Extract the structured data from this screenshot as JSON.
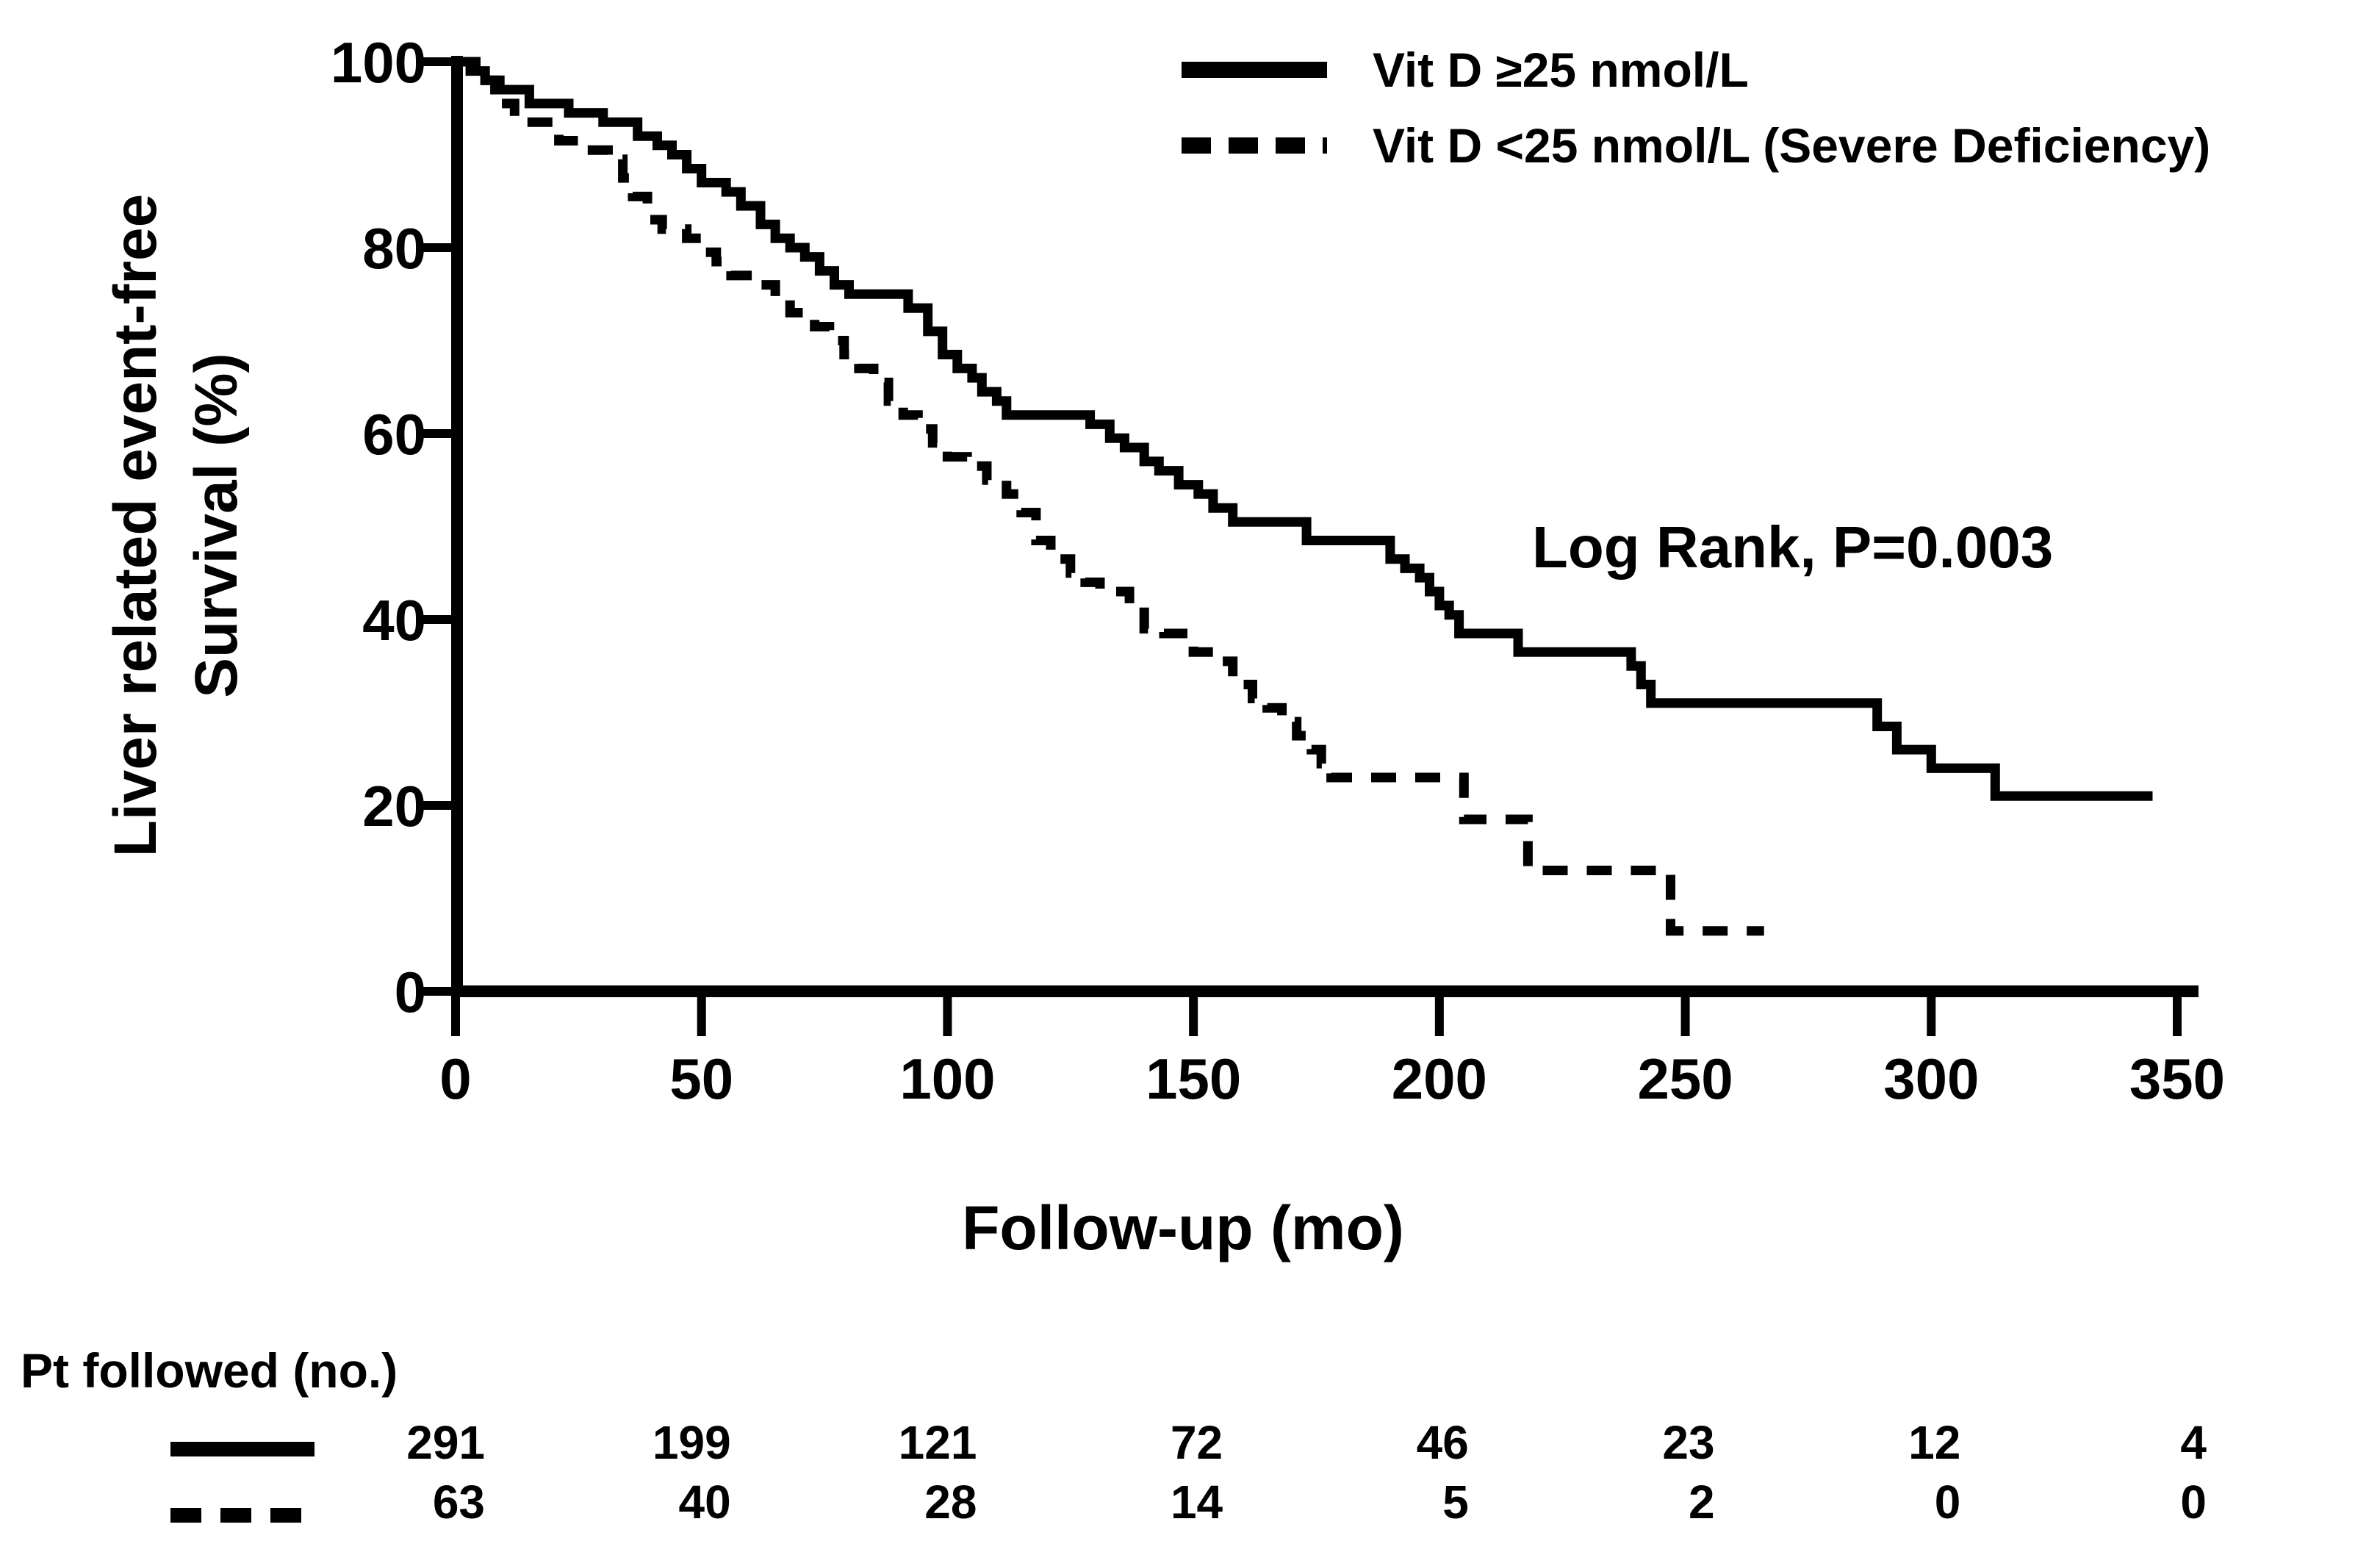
{
  "chart_data": {
    "type": "line",
    "subtype": "kaplan-meier-step",
    "title": "",
    "xlabel": "Follow-up (mo)",
    "ylabel_lines": [
      "Liver related event-free",
      "Survival (%)"
    ],
    "xlim": [
      0,
      350
    ],
    "ylim": [
      0,
      100
    ],
    "x_ticks": [
      0,
      50,
      100,
      150,
      200,
      250,
      300,
      350
    ],
    "y_ticks": [
      0,
      20,
      40,
      60,
      80,
      100
    ],
    "grid": "off",
    "legend_position": "top-right",
    "annotation": "Log Rank, P=0.003",
    "colors": {
      "line": "#000000",
      "background": "#ffffff"
    },
    "legend": [
      {
        "label": "Vit D ≥25 nmol/L",
        "style": "solid"
      },
      {
        "label": "Vit D <25 nmol/L (Severe Deficiency)",
        "style": "dashed"
      }
    ],
    "series": [
      {
        "name": "Vit D ≥25 nmol/L",
        "style": "solid",
        "points": [
          [
            0,
            100
          ],
          [
            3,
            99
          ],
          [
            6,
            98
          ],
          [
            8,
            97
          ],
          [
            15,
            95.5
          ],
          [
            23,
            94.5
          ],
          [
            30,
            93.5
          ],
          [
            37,
            92
          ],
          [
            41,
            91
          ],
          [
            44,
            90
          ],
          [
            47,
            88.5
          ],
          [
            50,
            87
          ],
          [
            55,
            86
          ],
          [
            58,
            84.5
          ],
          [
            62,
            82.5
          ],
          [
            65,
            81
          ],
          [
            68,
            80
          ],
          [
            71,
            79
          ],
          [
            74,
            77.5
          ],
          [
            77,
            76
          ],
          [
            80,
            75
          ],
          [
            92,
            73.5
          ],
          [
            96,
            71
          ],
          [
            99,
            68.5
          ],
          [
            102,
            67
          ],
          [
            105,
            66
          ],
          [
            107,
            64.5
          ],
          [
            110,
            63.5
          ],
          [
            112,
            62
          ],
          [
            129,
            61
          ],
          [
            133,
            59.5
          ],
          [
            136,
            58.5
          ],
          [
            140,
            57
          ],
          [
            143,
            56
          ],
          [
            147,
            54.5
          ],
          [
            151,
            53.5
          ],
          [
            154,
            52
          ],
          [
            158,
            50.5
          ],
          [
            173,
            48.5
          ],
          [
            190,
            46.5
          ],
          [
            193,
            45.5
          ],
          [
            196,
            44.5
          ],
          [
            198,
            43
          ],
          [
            200,
            41.5
          ],
          [
            202,
            40.5
          ],
          [
            204,
            38.5
          ],
          [
            216,
            36.5
          ],
          [
            239,
            35
          ],
          [
            241,
            33
          ],
          [
            243,
            31
          ],
          [
            289,
            28.5
          ],
          [
            293,
            26
          ],
          [
            300,
            24
          ],
          [
            313,
            21
          ],
          [
            345,
            21
          ]
        ]
      },
      {
        "name": "Vit D <25 nmol/L (Severe Deficiency)",
        "style": "dashed",
        "points": [
          [
            0,
            100
          ],
          [
            6,
            98
          ],
          [
            9,
            95.5
          ],
          [
            12,
            93.5
          ],
          [
            21,
            91.5
          ],
          [
            26,
            90.5
          ],
          [
            31,
            89.5
          ],
          [
            34,
            87.5
          ],
          [
            36,
            85.5
          ],
          [
            39,
            83
          ],
          [
            42,
            82
          ],
          [
            47,
            81
          ],
          [
            50,
            79.5
          ],
          [
            53,
            78.5
          ],
          [
            56,
            77
          ],
          [
            62,
            76
          ],
          [
            65,
            74.5
          ],
          [
            68,
            73
          ],
          [
            73,
            71.5
          ],
          [
            76,
            70
          ],
          [
            79,
            68.5
          ],
          [
            82,
            67
          ],
          [
            85,
            65.5
          ],
          [
            88,
            63.5
          ],
          [
            91,
            62
          ],
          [
            94,
            60.5
          ],
          [
            97,
            59
          ],
          [
            100,
            57.5
          ],
          [
            104,
            56.5
          ],
          [
            108,
            55
          ],
          [
            112,
            53.5
          ],
          [
            115,
            51.5
          ],
          [
            118,
            48.5
          ],
          [
            121,
            46.5
          ],
          [
            125,
            45
          ],
          [
            128,
            44
          ],
          [
            131,
            43
          ],
          [
            137,
            41.5
          ],
          [
            140,
            39
          ],
          [
            144,
            38.5
          ],
          [
            150,
            36.5
          ],
          [
            153,
            35.5
          ],
          [
            158,
            33
          ],
          [
            162,
            31.5
          ],
          [
            165,
            30.5
          ],
          [
            168,
            29
          ],
          [
            171,
            27.5
          ],
          [
            174,
            26
          ],
          [
            176,
            24.5
          ],
          [
            178,
            23
          ],
          [
            205,
            18.5
          ],
          [
            218,
            13
          ],
          [
            247,
            6.5
          ],
          [
            266,
            6.5
          ]
        ]
      }
    ],
    "risk_table": {
      "title": "Pt followed (no.)",
      "times": [
        0,
        50,
        100,
        150,
        200,
        250,
        300,
        350
      ],
      "rows": [
        {
          "group": "Vit D ≥25 nmol/L",
          "style": "solid",
          "counts": [
            "291",
            "199",
            "121",
            "72",
            "46",
            "23",
            "12",
            "4"
          ]
        },
        {
          "group": "Vit D <25 nmol/L (Severe Deficiency)",
          "style": "dashed",
          "counts": [
            "63",
            "40",
            "28",
            "14",
            "5",
            "2",
            "0",
            "0"
          ]
        }
      ]
    }
  }
}
